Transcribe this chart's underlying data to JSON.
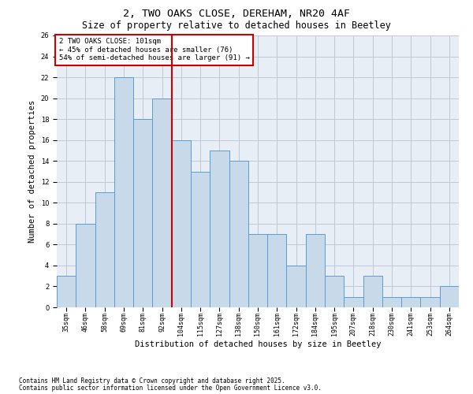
{
  "title1": "2, TWO OAKS CLOSE, DEREHAM, NR20 4AF",
  "title2": "Size of property relative to detached houses in Beetley",
  "xlabel": "Distribution of detached houses by size in Beetley",
  "ylabel": "Number of detached properties",
  "categories": [
    "35sqm",
    "46sqm",
    "58sqm",
    "69sqm",
    "81sqm",
    "92sqm",
    "104sqm",
    "115sqm",
    "127sqm",
    "138sqm",
    "150sqm",
    "161sqm",
    "172sqm",
    "184sqm",
    "195sqm",
    "207sqm",
    "218sqm",
    "230sqm",
    "241sqm",
    "253sqm",
    "264sqm"
  ],
  "values": [
    3,
    8,
    11,
    22,
    18,
    20,
    16,
    13,
    15,
    14,
    7,
    7,
    4,
    7,
    3,
    1,
    3,
    1,
    1,
    1,
    2
  ],
  "bar_color": "#c8d9ea",
  "bar_edge_color": "#5b9bd5",
  "vline_index": 6,
  "vline_color": "#cc0000",
  "annotation_lines": [
    "2 TWO OAKS CLOSE: 101sqm",
    "← 45% of detached houses are smaller (76)",
    "54% of semi-detached houses are larger (91) →"
  ],
  "annotation_box_edge": "#cc0000",
  "ylim": [
    0,
    26
  ],
  "yticks": [
    0,
    2,
    4,
    6,
    8,
    10,
    12,
    14,
    16,
    18,
    20,
    22,
    24,
    26
  ],
  "grid_color": "#c0c8d8",
  "bg_color": "#e8eef5",
  "footer1": "Contains HM Land Registry data © Crown copyright and database right 2025.",
  "footer2": "Contains public sector information licensed under the Open Government Licence v3.0.",
  "title1_fontsize": 9.5,
  "title2_fontsize": 8.5,
  "axis_label_fontsize": 7.5,
  "tick_fontsize": 6.0,
  "annotation_fontsize": 6.5,
  "footer_fontsize": 5.5
}
